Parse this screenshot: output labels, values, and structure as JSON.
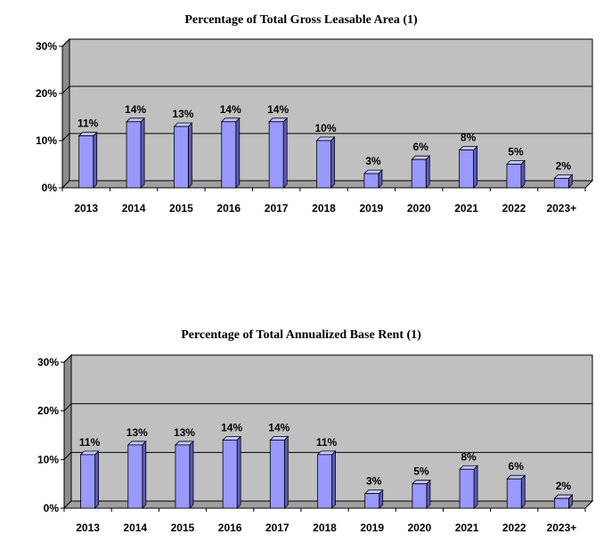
{
  "chart_data": [
    {
      "type": "bar",
      "title": "Percentage of Total Gross Leasable Area (1)",
      "categories": [
        "2013",
        "2014",
        "2015",
        "2016",
        "2017",
        "2018",
        "2019",
        "2020",
        "2021",
        "2022",
        "2023+"
      ],
      "values": [
        11,
        14,
        13,
        14,
        14,
        10,
        3,
        6,
        8,
        5,
        2
      ],
      "data_labels": [
        "11%",
        "14%",
        "13%",
        "14%",
        "14%",
        "10%",
        "3%",
        "6%",
        "8%",
        "5%",
        "2%"
      ],
      "yticks": [
        "0%",
        "10%",
        "20%",
        "30%"
      ],
      "ylim": [
        0,
        30
      ],
      "grid": true,
      "colors": {
        "bar_front": "#9999ff",
        "bar_side": "#5c5cb8",
        "bar_top": "#c4c4ff",
        "wall": "#c0c0c0"
      }
    },
    {
      "type": "bar",
      "title": "Percentage of Total Annualized Base Rent (1)",
      "categories": [
        "2013",
        "2014",
        "2015",
        "2016",
        "2017",
        "2018",
        "2019",
        "2020",
        "2021",
        "2022",
        "2023+"
      ],
      "values": [
        11,
        13,
        13,
        14,
        14,
        11,
        3,
        5,
        8,
        6,
        2
      ],
      "data_labels": [
        "11%",
        "13%",
        "13%",
        "14%",
        "14%",
        "11%",
        "3%",
        "5%",
        "8%",
        "6%",
        "2%"
      ],
      "yticks": [
        "0%",
        "10%",
        "20%",
        "30%"
      ],
      "ylim": [
        0,
        30
      ],
      "grid": true,
      "colors": {
        "bar_front": "#9999ff",
        "bar_side": "#5c5cb8",
        "bar_top": "#c4c4ff",
        "wall": "#c0c0c0"
      }
    }
  ]
}
